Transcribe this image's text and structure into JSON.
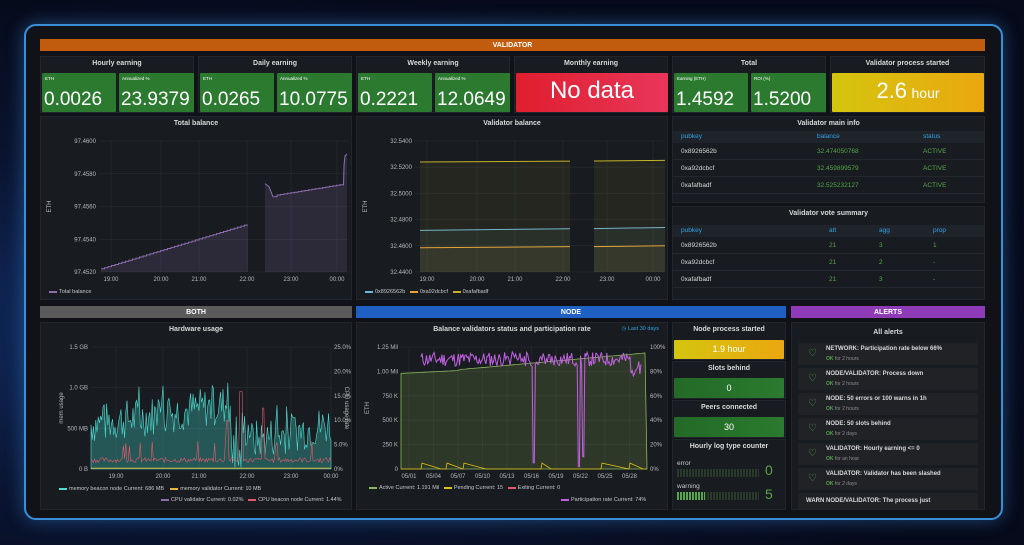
{
  "rows": {
    "validator": "VALIDATOR",
    "both": "BOTH",
    "node": "NODE",
    "alerts": "ALERTS"
  },
  "colors": {
    "validator_row": "#c15c0e",
    "both_row": "#5b5b5b",
    "node_row": "#1f60c4",
    "alerts_row": "#8f3bb8",
    "green": "#2b7a2f",
    "red": "#e02f44",
    "yellow": "#e0c010",
    "blue": "#33a2e5"
  },
  "stats": {
    "hourly": {
      "title": "Hourly earning",
      "eth_label": "ETH",
      "eth": "0.0026",
      "ann_label": "Annualized %",
      "ann": "23.9379"
    },
    "daily": {
      "title": "Daily earning",
      "eth_label": "ETH",
      "eth": "0.0265",
      "ann_label": "Annualized %",
      "ann": "10.0775"
    },
    "weekly": {
      "title": "Weekly earning",
      "eth_label": "ETH",
      "eth": "0.2221",
      "ann_label": "Annualized %",
      "ann": "12.0649"
    },
    "monthly": {
      "title": "Monthly earning",
      "value": "No data"
    },
    "total": {
      "title": "Total",
      "eth_label": "Earning (ETH)",
      "eth": "1.4592",
      "roi_label": "ROI (%)",
      "roi": "1.5200"
    },
    "process": {
      "title": "Validator process started",
      "value": "2.6",
      "unit": "hour"
    }
  },
  "total_balance": {
    "title": "Total balance",
    "ylabel": "ETH",
    "yticks": [
      "97.4600",
      "97.4580",
      "97.4560",
      "97.4540",
      "97.4520"
    ],
    "xticks": [
      "19:00",
      "20:00",
      "21:00",
      "22:00",
      "23:00",
      "00:00"
    ],
    "legend": "Total balance"
  },
  "validator_balance": {
    "title": "Validator balance",
    "ylabel": "ETH",
    "yticks": [
      "32.5400",
      "32.5200",
      "32.5000",
      "32.4800",
      "32.4600",
      "32.4400"
    ],
    "xticks": [
      "19:00",
      "20:00",
      "21:00",
      "22:00",
      "23:00",
      "00:00"
    ],
    "legend": [
      "0x8926562b",
      "0xa92dcbcf",
      "0xafafbadf"
    ]
  },
  "main_info": {
    "title": "Validator main info",
    "headers": [
      "pubkey",
      "balance",
      "status"
    ],
    "rows": [
      [
        "0x8926562b",
        "32.474050768",
        "ACTIVE"
      ],
      [
        "0xa92dcbcf",
        "32.459899579",
        "ACTIVE"
      ],
      [
        "0xafafbadf",
        "32.525232127",
        "ACTIVE"
      ]
    ]
  },
  "vote_summary": {
    "title": "Validator vote summary",
    "headers": [
      "pubkey",
      "att",
      "agg",
      "prop"
    ],
    "rows": [
      [
        "0x8926562b",
        "21",
        "3",
        "1"
      ],
      [
        "0xa92dcbcf",
        "21",
        "2",
        "-"
      ],
      [
        "0xafafbadf",
        "21",
        "3",
        "-"
      ]
    ]
  },
  "hardware": {
    "title": "Hardware usage",
    "ylabel": "mem usage",
    "y2label": "CPU usage rate",
    "yticks": [
      "1.5 GB",
      "1.0 GB",
      "500 MB",
      "0 B"
    ],
    "y2ticks": [
      "25.0%",
      "20.0%",
      "15.0%",
      "10.0%",
      "5.0%",
      "0%"
    ],
    "xticks": [
      "19:00",
      "20:00",
      "21:00",
      "22:00",
      "23:00",
      "00:00"
    ],
    "legend": [
      {
        "name": "memory beacon node",
        "current": "Current: 686 MB"
      },
      {
        "name": "memory validator",
        "current": "Current: 10 MB"
      },
      {
        "name": "CPU validator",
        "current": "Current: 0.02%"
      },
      {
        "name": "CPU beacon node",
        "current": "Current: 1.44%"
      }
    ]
  },
  "participation": {
    "title": "Balance validators status and participation rate",
    "range": "Last 30 days",
    "ylabel": "ETH",
    "yticks": [
      "1.25 Mil",
      "1.00 Mil",
      "750 K",
      "500 K",
      "250 K",
      "0"
    ],
    "y2ticks": [
      "100%",
      "80%",
      "60%",
      "40%",
      "20%",
      "0%"
    ],
    "xticks": [
      "05/01",
      "05/04",
      "05/07",
      "05/10",
      "05/13",
      "05/16",
      "05/19",
      "05/22",
      "05/25",
      "05/28"
    ],
    "legend": [
      {
        "name": "Active",
        "current": "Current: 1.191 Mil"
      },
      {
        "name": "Pending",
        "current": "Current: 15"
      },
      {
        "name": "Exiting",
        "current": "Current: 0"
      },
      {
        "name": "Participation rate",
        "current": "Current: 74%"
      }
    ]
  },
  "node_process": {
    "title": "Node process started",
    "value": "1.9 hour"
  },
  "slots_behind": {
    "title": "Slots behind",
    "value": "0"
  },
  "peers": {
    "title": "Peers connected",
    "value": "30"
  },
  "log_counter": {
    "title": "Hourly log type counter",
    "items": [
      {
        "label": "error",
        "value": "0"
      },
      {
        "label": "warning",
        "value": "5"
      }
    ]
  },
  "alerts": {
    "title": "All alerts",
    "items": [
      {
        "name": "NETWORK: Participation rate below 66%",
        "state": "OK",
        "since": "for 2 hours"
      },
      {
        "name": "NODE/VALIDATOR: Process down",
        "state": "OK",
        "since": "for 2 hours"
      },
      {
        "name": "NODE: 50 errors or 100 warns in 1h",
        "state": "OK",
        "since": "for 2 hours"
      },
      {
        "name": "NODE: 50 slots behind",
        "state": "OK",
        "since": "for 2 days"
      },
      {
        "name": "VALIDATOR: Hourly earning <= 0",
        "state": "OK",
        "since": "for an hour"
      },
      {
        "name": "VALIDATOR: Validator has been slashed",
        "state": "OK",
        "since": "for 2 days"
      },
      {
        "name": "WARN NODE/VALIDATOR: The process just",
        "state": "",
        "since": ""
      }
    ]
  }
}
